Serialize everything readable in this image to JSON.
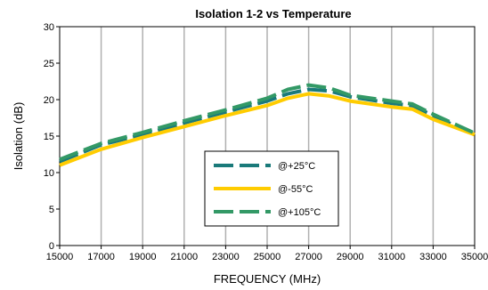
{
  "chart_data": {
    "type": "line",
    "title": "Isolation 1-2 vs Temperature",
    "xlabel": "FREQUENCY (MHz)",
    "ylabel": "Isolation (dB)",
    "xlim": [
      15000,
      35000
    ],
    "ylim": [
      0,
      30
    ],
    "x_ticks": [
      "15000",
      "17000",
      "19000",
      "21000",
      "23000",
      "25000",
      "27000",
      "29000",
      "31000",
      "33000",
      "35000"
    ],
    "y_ticks": [
      "0",
      "5",
      "10",
      "15",
      "20",
      "25",
      "30"
    ],
    "grid": "vertical",
    "legend_placement": "center-bottom",
    "x": [
      15000,
      17000,
      19000,
      21000,
      23000,
      25000,
      26000,
      27000,
      28000,
      29000,
      31000,
      32000,
      33000,
      35000
    ],
    "series": [
      {
        "name": "@+25°C",
        "color": "#1a7a7a",
        "style": "dashed",
        "values": [
          11.5,
          13.8,
          15.2,
          16.8,
          18.3,
          19.8,
          20.8,
          21.4,
          21.2,
          20.4,
          19.5,
          19.2,
          17.8,
          15.2
        ]
      },
      {
        "name": "@-55°C",
        "color": "#ffcc00",
        "style": "solid",
        "values": [
          11.0,
          13.2,
          14.8,
          16.3,
          17.8,
          19.2,
          20.2,
          20.8,
          20.5,
          19.8,
          19.0,
          18.7,
          17.3,
          15.2
        ]
      },
      {
        "name": "@+105°C",
        "color": "#339966",
        "style": "dashed",
        "values": [
          11.8,
          14.0,
          15.5,
          17.1,
          18.6,
          20.2,
          21.4,
          22.0,
          21.6,
          20.6,
          19.8,
          19.4,
          18.0,
          15.4
        ]
      }
    ]
  }
}
